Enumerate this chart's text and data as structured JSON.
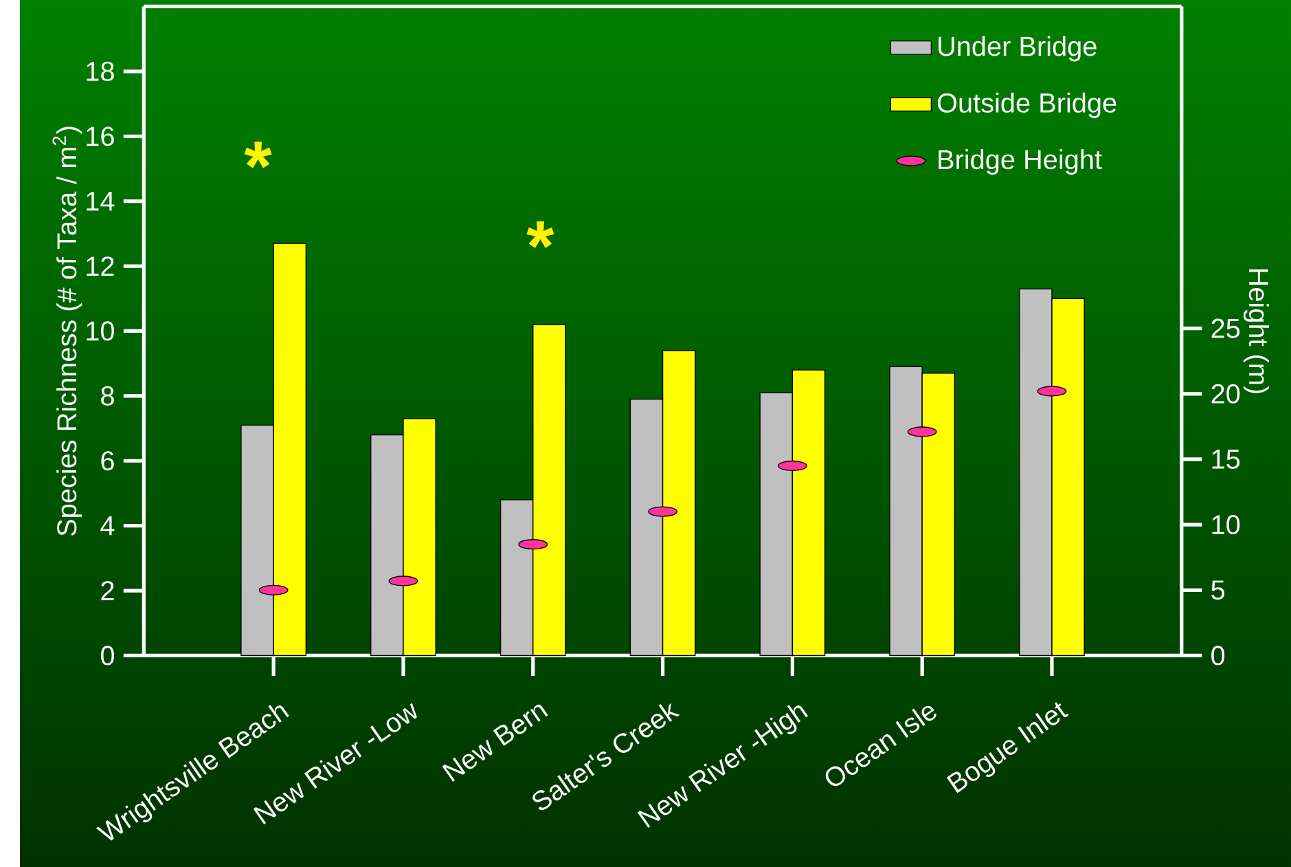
{
  "chart_data": {
    "type": "bar",
    "categories": [
      "Wrightsville Beach",
      "New River -Low",
      "New Bern",
      "Salter's Creek",
      "New River -High",
      "Ocean Isle",
      "Bogue Inlet"
    ],
    "series": [
      {
        "name": "Under Bridge",
        "color": "#c0c0c0",
        "values": [
          7.1,
          6.8,
          4.8,
          7.9,
          8.1,
          8.9,
          11.3
        ]
      },
      {
        "name": "Outside Bridge",
        "color": "#ffff00",
        "values": [
          12.7,
          7.3,
          10.2,
          9.4,
          8.8,
          8.7,
          11.0
        ]
      },
      {
        "name": "Bridge Height",
        "type": "scatter",
        "axis": "y2",
        "color": "#ff3399",
        "values": [
          5.0,
          5.7,
          8.5,
          11.0,
          14.5,
          17.1,
          20.2
        ]
      }
    ],
    "ylabel": "Species Richness (# of Taxa / m$^{2}$)",
    "y2label": "Height (m)",
    "ylim": [
      0,
      20
    ],
    "yticks": [
      0,
      2,
      4,
      6,
      8,
      10,
      12,
      14,
      16,
      18
    ],
    "y2lim": [
      0,
      49.6
    ],
    "y2ticks": [
      0,
      5,
      10,
      15,
      20,
      25
    ],
    "annotations": [
      "*",
      "*"
    ],
    "legend": "top right",
    "grid": false
  }
}
